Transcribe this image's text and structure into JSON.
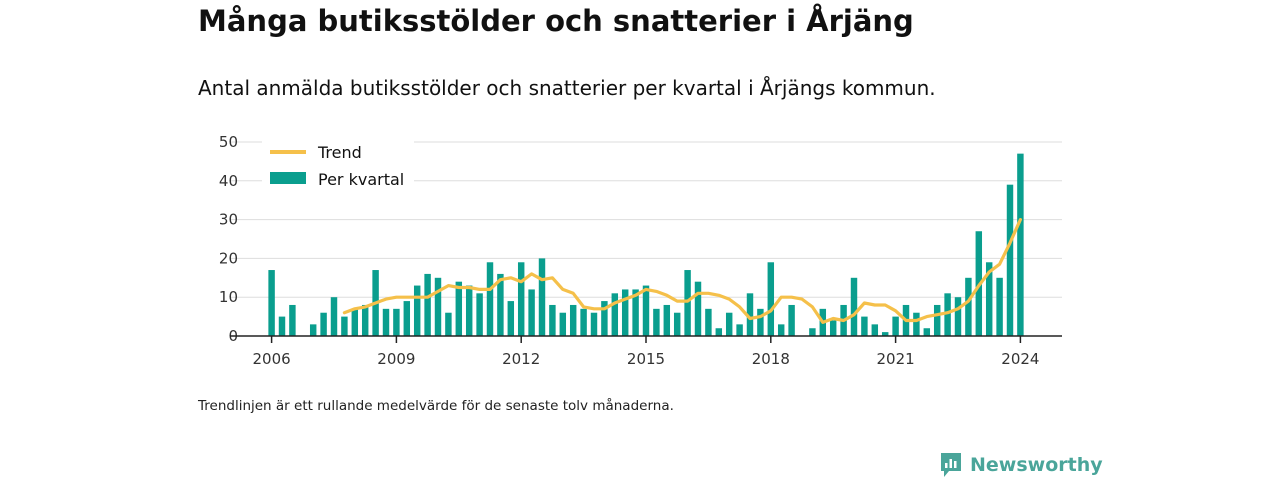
{
  "title": "Många butiksstölder och snatterier i Årjäng",
  "subtitle": "Antal anmälda butiksstölder och snatterier per kvartal i Årjängs kommun.",
  "note": "Trendlinjen är ett rullande medelvärde för de senaste tolv månaderna.",
  "brand": {
    "name": "Newsworthy",
    "icon": "newsworthy-logo-icon"
  },
  "colors": {
    "bars": "#0a9e8e",
    "trend": "#f5c04a",
    "grid": "#dddddd",
    "axis": "#222222"
  },
  "chart_data": {
    "type": "bar",
    "xlim": [
      2005.0,
      2025.0
    ],
    "ylim": [
      0,
      50
    ],
    "yticks": [
      0,
      10,
      20,
      30,
      40,
      50
    ],
    "xticks": [
      2006,
      2009,
      2012,
      2015,
      2018,
      2021,
      2024
    ],
    "grid": true,
    "legend_position": "top-left",
    "legend": [
      "Trend",
      "Per kvartal"
    ],
    "series": [
      {
        "name": "Per kvartal",
        "type": "bar",
        "x": [
          "2006-Q1",
          "2006-Q2",
          "2006-Q3",
          "2006-Q4",
          "2007-Q1",
          "2007-Q2",
          "2007-Q3",
          "2007-Q4",
          "2008-Q1",
          "2008-Q2",
          "2008-Q3",
          "2008-Q4",
          "2009-Q1",
          "2009-Q2",
          "2009-Q3",
          "2009-Q4",
          "2010-Q1",
          "2010-Q2",
          "2010-Q3",
          "2010-Q4",
          "2011-Q1",
          "2011-Q2",
          "2011-Q3",
          "2011-Q4",
          "2012-Q1",
          "2012-Q2",
          "2012-Q3",
          "2012-Q4",
          "2013-Q1",
          "2013-Q2",
          "2013-Q3",
          "2013-Q4",
          "2014-Q1",
          "2014-Q2",
          "2014-Q3",
          "2014-Q4",
          "2015-Q1",
          "2015-Q2",
          "2015-Q3",
          "2015-Q4",
          "2016-Q1",
          "2016-Q2",
          "2016-Q3",
          "2016-Q4",
          "2017-Q1",
          "2017-Q2",
          "2017-Q3",
          "2017-Q4",
          "2018-Q1",
          "2018-Q2",
          "2018-Q3",
          "2018-Q4",
          "2019-Q1",
          "2019-Q2",
          "2019-Q3",
          "2019-Q4",
          "2020-Q1",
          "2020-Q2",
          "2020-Q3",
          "2020-Q4",
          "2021-Q1",
          "2021-Q2",
          "2021-Q3",
          "2021-Q4",
          "2022-Q1",
          "2022-Q2",
          "2022-Q3",
          "2022-Q4",
          "2023-Q1",
          "2023-Q2",
          "2023-Q3",
          "2023-Q4",
          "2024-Q1"
        ],
        "values": [
          17,
          5,
          8,
          0,
          3,
          6,
          10,
          5,
          7,
          8,
          17,
          7,
          7,
          9,
          13,
          16,
          15,
          6,
          14,
          13,
          11,
          19,
          16,
          9,
          19,
          12,
          20,
          8,
          6,
          8,
          7,
          6,
          9,
          11,
          12,
          12,
          13,
          7,
          8,
          6,
          17,
          14,
          7,
          2,
          6,
          3,
          11,
          7,
          19,
          3,
          8,
          0,
          2,
          7,
          4,
          8,
          15,
          5,
          3,
          1,
          5,
          8,
          6,
          2,
          8,
          11,
          10,
          15,
          27,
          19,
          15,
          39,
          47
        ]
      },
      {
        "name": "Trend",
        "type": "line",
        "x": [
          "2007-Q4",
          "2008-Q1",
          "2008-Q2",
          "2008-Q3",
          "2008-Q4",
          "2009-Q1",
          "2009-Q2",
          "2009-Q3",
          "2009-Q4",
          "2010-Q1",
          "2010-Q2",
          "2010-Q3",
          "2010-Q4",
          "2011-Q1",
          "2011-Q2",
          "2011-Q3",
          "2011-Q4",
          "2012-Q1",
          "2012-Q2",
          "2012-Q3",
          "2012-Q4",
          "2013-Q1",
          "2013-Q2",
          "2013-Q3",
          "2013-Q4",
          "2014-Q1",
          "2014-Q2",
          "2014-Q3",
          "2014-Q4",
          "2015-Q1",
          "2015-Q2",
          "2015-Q3",
          "2015-Q4",
          "2016-Q1",
          "2016-Q2",
          "2016-Q3",
          "2016-Q4",
          "2017-Q1",
          "2017-Q2",
          "2017-Q3",
          "2017-Q4",
          "2018-Q1",
          "2018-Q2",
          "2018-Q3",
          "2018-Q4",
          "2019-Q1",
          "2019-Q2",
          "2019-Q3",
          "2019-Q4",
          "2020-Q1",
          "2020-Q2",
          "2020-Q3",
          "2020-Q4",
          "2021-Q1",
          "2021-Q2",
          "2021-Q3",
          "2021-Q4",
          "2022-Q1",
          "2022-Q2",
          "2022-Q3",
          "2022-Q4",
          "2023-Q1",
          "2023-Q2",
          "2023-Q3",
          "2023-Q4",
          "2024-Q1"
        ],
        "values": [
          6,
          7,
          7.5,
          8.5,
          9.5,
          10,
          10,
          10,
          10,
          11.5,
          13,
          12.5,
          12.5,
          12,
          12,
          14.5,
          15,
          14,
          16,
          14.5,
          15,
          12,
          11,
          7.5,
          7,
          7,
          8.5,
          9.5,
          10.5,
          12,
          11.5,
          10.5,
          9,
          9,
          11,
          11,
          10.5,
          9.5,
          7.5,
          4.5,
          5,
          6.5,
          10,
          10,
          9.5,
          7.5,
          3.5,
          4.5,
          4,
          5.5,
          8.5,
          8,
          8,
          6.5,
          4,
          4,
          5,
          5.5,
          6,
          7,
          9,
          13,
          16.5,
          18.5,
          24,
          30
        ]
      }
    ]
  }
}
